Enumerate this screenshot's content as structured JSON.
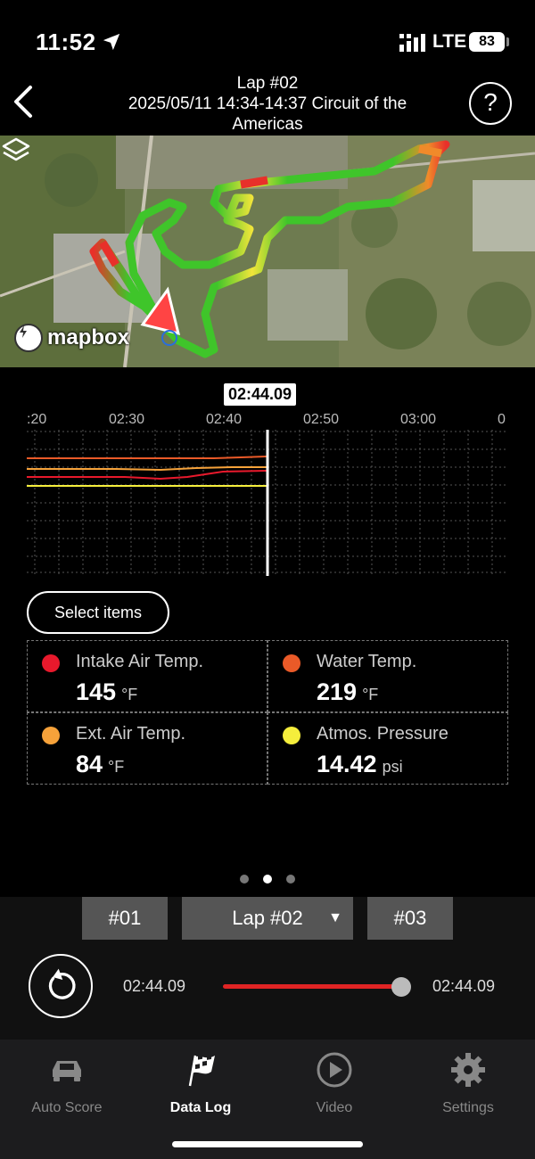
{
  "status_bar": {
    "time": "11:52",
    "network": "LTE",
    "battery": "83",
    "location_icon": "location-arrow-icon",
    "signal_icon": "signal-bars-icon"
  },
  "header": {
    "title_line1": "Lap #02",
    "title_line2": "2025/05/11 14:34-14:37 Circuit of the Americas",
    "back_icon": "chevron-left-icon",
    "help_label": "?"
  },
  "map": {
    "attribution": "mapbox",
    "layers_icon": "layers-icon"
  },
  "timeline": {
    "cursor_time": "02:44.09",
    "ticks": [
      ":20",
      "02:30",
      "02:40",
      "02:50",
      "03:00",
      "0"
    ]
  },
  "select_items_label": "Select items",
  "readouts": [
    {
      "label": "Intake Air Temp.",
      "value": "145",
      "unit": "°F",
      "color": "#e8192c"
    },
    {
      "label": "Water Temp.",
      "value": "219",
      "unit": "°F",
      "color": "#ea5a28"
    },
    {
      "label": "Ext. Air Temp.",
      "value": "84",
      "unit": "°F",
      "color": "#f6a23a"
    },
    {
      "label": "Atmos. Pressure",
      "value": "14.42",
      "unit": "psi",
      "color": "#f5ee3c"
    }
  ],
  "pager": {
    "count": 3,
    "active": 2
  },
  "laps": {
    "prev": "#01",
    "current": "Lap #02",
    "next": "#03",
    "caret": "▼"
  },
  "playback": {
    "start_time": "02:44.09",
    "end_time": "02:44.09",
    "position": 1.0,
    "replay_icon": "replay-icon"
  },
  "tabs": [
    {
      "label": "Auto Score",
      "icon": "car-icon",
      "active": false
    },
    {
      "label": "Data Log",
      "icon": "checkered-flag-icon",
      "active": true
    },
    {
      "label": "Video",
      "icon": "play-circle-icon",
      "active": false
    },
    {
      "label": "Settings",
      "icon": "gear-icon",
      "active": false
    }
  ]
}
